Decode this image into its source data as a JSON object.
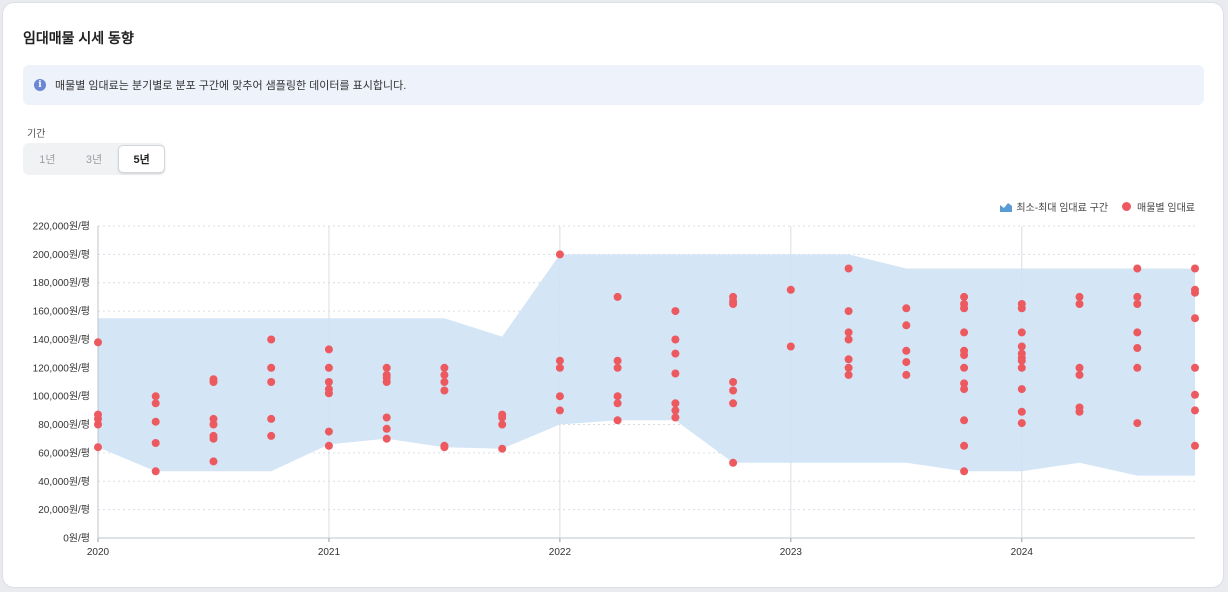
{
  "header": {
    "title": "임대매물 시세 동향"
  },
  "notice": {
    "icon": "info-icon",
    "text": "매물별 임대료는 분기별로 분포 구간에 맞추어 샘플링한 데이터를 표시합니다."
  },
  "period": {
    "label": "기간",
    "options": [
      "1년",
      "3년",
      "5년"
    ],
    "selected": "5년"
  },
  "legend": {
    "range_label": "최소-최대 임대료 구간",
    "dot_label": "매물별 임대료"
  },
  "colors": {
    "band": "#cfe2f5",
    "dot": "#ec5a5f",
    "accent_icon": "#5b9bd5"
  },
  "chart_data": {
    "type": "scatter",
    "x_unit": "quarter",
    "x_ticks": [
      2020,
      2021,
      2022,
      2023,
      2024
    ],
    "xlim": [
      2020.0,
      2024.75
    ],
    "ylim": [
      0,
      220000
    ],
    "y_ticks": [
      0,
      20000,
      40000,
      60000,
      80000,
      100000,
      120000,
      140000,
      160000,
      180000,
      200000,
      220000
    ],
    "y_tick_labels": [
      "0원/평",
      "20,000원/평",
      "40,000원/평",
      "60,000원/평",
      "80,000원/평",
      "100,000원/평",
      "120,000원/평",
      "140,000원/평",
      "160,000원/평",
      "180,000원/평",
      "200,000원/평",
      "220,000원/평"
    ],
    "grid": true,
    "band": {
      "x": [
        2020.0,
        2020.25,
        2020.5,
        2020.75,
        2021.0,
        2021.25,
        2021.5,
        2021.75,
        2022.0,
        2022.25,
        2022.5,
        2022.75,
        2023.0,
        2023.25,
        2023.5,
        2023.75,
        2024.0,
        2024.25,
        2024.5,
        2024.75
      ],
      "min": [
        64000,
        47000,
        47000,
        47000,
        66000,
        70000,
        64000,
        63000,
        80000,
        83000,
        83000,
        53000,
        53000,
        53000,
        53000,
        47000,
        47000,
        53000,
        44000,
        44000
      ],
      "max": [
        155000,
        155000,
        155000,
        155000,
        155000,
        155000,
        155000,
        142000,
        200000,
        200000,
        200000,
        200000,
        200000,
        200000,
        190000,
        190000,
        190000,
        190000,
        190000,
        190000
      ]
    },
    "points": [
      {
        "x": 2020.0,
        "y": [
          138000,
          87000,
          84000,
          80000,
          64000
        ]
      },
      {
        "x": 2020.25,
        "y": [
          100000,
          95000,
          82000,
          67000,
          47000
        ]
      },
      {
        "x": 2020.5,
        "y": [
          112000,
          110000,
          84000,
          80000,
          72000,
          70000,
          54000
        ]
      },
      {
        "x": 2020.75,
        "y": [
          140000,
          120000,
          110000,
          84000,
          72000
        ]
      },
      {
        "x": 2021.0,
        "y": [
          133000,
          120000,
          110000,
          105000,
          102000,
          75000,
          65000
        ]
      },
      {
        "x": 2021.25,
        "y": [
          120000,
          115000,
          113000,
          110000,
          85000,
          77000,
          70000
        ]
      },
      {
        "x": 2021.5,
        "y": [
          120000,
          115000,
          110000,
          104000,
          65000,
          64000
        ]
      },
      {
        "x": 2021.75,
        "y": [
          87000,
          85000,
          80000,
          63000
        ]
      },
      {
        "x": 2022.0,
        "y": [
          200000,
          125000,
          120000,
          100000,
          90000
        ]
      },
      {
        "x": 2022.25,
        "y": [
          170000,
          125000,
          120000,
          100000,
          95000,
          83000
        ]
      },
      {
        "x": 2022.5,
        "y": [
          160000,
          140000,
          130000,
          116000,
          95000,
          90000,
          85000
        ]
      },
      {
        "x": 2022.75,
        "y": [
          170000,
          167000,
          165000,
          110000,
          104000,
          95000,
          53000
        ]
      },
      {
        "x": 2023.0,
        "y": [
          175000,
          135000
        ]
      },
      {
        "x": 2023.25,
        "y": [
          190000,
          160000,
          145000,
          140000,
          126000,
          120000,
          115000
        ]
      },
      {
        "x": 2023.5,
        "y": [
          162000,
          150000,
          132000,
          124000,
          115000
        ]
      },
      {
        "x": 2023.75,
        "y": [
          170000,
          165000,
          162000,
          145000,
          132000,
          129000,
          120000,
          109000,
          105000,
          83000,
          65000,
          47000
        ]
      },
      {
        "x": 2024.0,
        "y": [
          165000,
          162000,
          145000,
          135000,
          130000,
          127000,
          125000,
          120000,
          105000,
          89000,
          81000
        ]
      },
      {
        "x": 2024.25,
        "y": [
          170000,
          165000,
          120000,
          115000,
          92000,
          89000
        ]
      },
      {
        "x": 2024.5,
        "y": [
          190000,
          170000,
          165000,
          145000,
          134000,
          120000,
          81000
        ]
      },
      {
        "x": 2024.75,
        "y": [
          190000,
          175000,
          173000,
          155000,
          120000,
          101000,
          90000,
          65000
        ]
      }
    ]
  }
}
